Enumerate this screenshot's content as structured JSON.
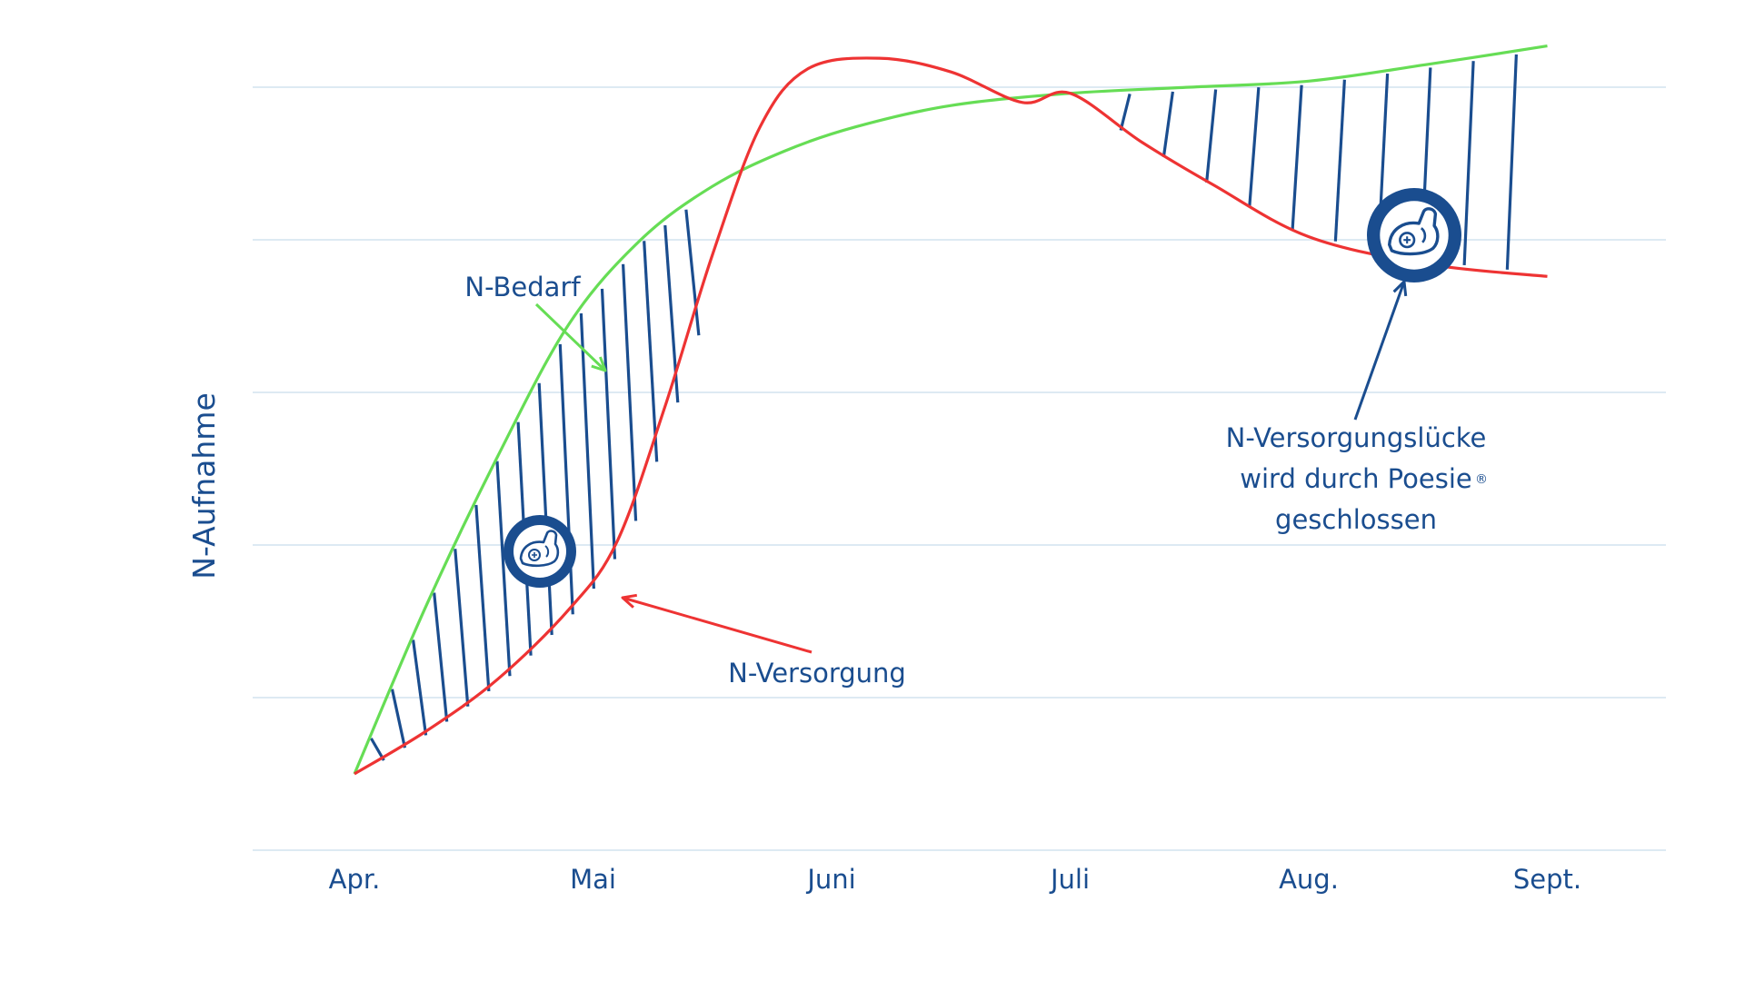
{
  "chart_data": {
    "type": "line",
    "categories": [
      "Apr.",
      "Mai",
      "Juni",
      "Juli",
      "Aug.",
      "Sept."
    ],
    "ylabel": "N-Aufnahme",
    "xlabel": "",
    "grid": true,
    "series": [
      {
        "name": "N-Bedarf",
        "color": "#66dd55",
        "points": [
          [
            0,
            0.5
          ],
          [
            0.3,
            1.6
          ],
          [
            0.6,
            2.58
          ],
          [
            0.9,
            3.45
          ],
          [
            1.2,
            4.0
          ],
          [
            1.5,
            4.35
          ],
          [
            1.8,
            4.58
          ],
          [
            2.1,
            4.74
          ],
          [
            2.5,
            4.88
          ],
          [
            3.0,
            4.96
          ],
          [
            3.5,
            5.0
          ],
          [
            4.0,
            5.04
          ],
          [
            4.5,
            5.15
          ],
          [
            5.0,
            5.27
          ]
        ]
      },
      {
        "name": "N-Versorgung",
        "color": "#ee3333",
        "points": [
          [
            0,
            0.5
          ],
          [
            0.3,
            0.78
          ],
          [
            0.6,
            1.12
          ],
          [
            0.9,
            1.58
          ],
          [
            1.1,
            2.02
          ],
          [
            1.3,
            2.9
          ],
          [
            1.5,
            3.9
          ],
          [
            1.7,
            4.74
          ],
          [
            1.9,
            5.12
          ],
          [
            2.2,
            5.19
          ],
          [
            2.5,
            5.1
          ],
          [
            2.8,
            4.9
          ],
          [
            3.0,
            4.96
          ],
          [
            3.3,
            4.64
          ],
          [
            3.6,
            4.36
          ],
          [
            4.0,
            4.02
          ],
          [
            4.5,
            3.84
          ],
          [
            5.0,
            3.76
          ]
        ]
      }
    ],
    "annotations": {
      "bedarf_label": "N-Bedarf",
      "versorgung_label": "N-Versorgung",
      "gap_line_1": "N-Versorgungslücke",
      "gap_line_2": "wird durch Poesie",
      "gap_registered": "®",
      "gap_line_3": "geschlossen"
    },
    "colors": {
      "text": "#1a4d8f",
      "grid": "#d2e3ef",
      "hatch": "#1a4d8f",
      "badge": "#1a4d8f"
    },
    "icons": [
      "flexed-arm-badge-icon",
      "flexed-arm-badge-icon"
    ]
  }
}
